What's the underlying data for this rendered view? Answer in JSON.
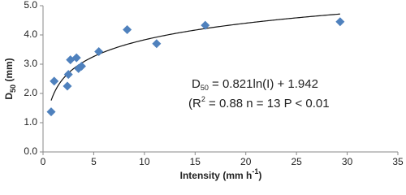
{
  "chart_data": {
    "type": "scatter",
    "xlabel": [
      "Intensity (mm h",
      "-1",
      ")"
    ],
    "ylabel": [
      "D",
      "50",
      " (mm)"
    ],
    "annotations": [
      [
        "D",
        "50",
        " = 0.821ln(I) + 1.942"
      ],
      [
        "(R",
        "2",
        " = 0.88 n = 13  P < 0.01"
      ]
    ],
    "x": [
      0.8,
      1.1,
      2.4,
      2.5,
      2.7,
      3.3,
      3.5,
      3.8,
      5.5,
      8.3,
      11.2,
      16.0,
      29.3
    ],
    "values": [
      1.37,
      2.42,
      2.25,
      2.65,
      3.15,
      3.22,
      2.85,
      2.93,
      3.43,
      4.18,
      3.7,
      4.33,
      4.45
    ],
    "color": "#4f81bd",
    "trendline": {
      "a": 0.821,
      "b": 1.942,
      "xrange": [
        0.8,
        29.3
      ]
    },
    "xlim": [
      0,
      35
    ],
    "xticks": [
      0,
      5,
      10,
      15,
      20,
      25,
      30,
      35
    ],
    "ylim": [
      0,
      5
    ],
    "yticks": [
      {
        "value": 0,
        "label": "0.0"
      },
      {
        "value": 1,
        "label": "1.0"
      },
      {
        "value": 2,
        "label": "2.0"
      },
      {
        "value": 3,
        "label": "3.0"
      },
      {
        "value": 4,
        "label": "4.0"
      },
      {
        "value": 5,
        "label": "5.0"
      }
    ],
    "grid": false
  }
}
